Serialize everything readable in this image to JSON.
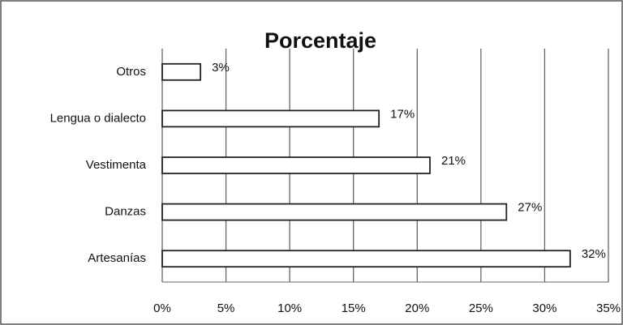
{
  "chart_data": {
    "type": "bar",
    "orientation": "horizontal",
    "title": "Porcentaje",
    "categories": [
      "Otros",
      "Lengua o dialecto",
      "Vestimenta",
      "Danzas",
      "Artesanías"
    ],
    "values": [
      3,
      17,
      21,
      27,
      32
    ],
    "value_labels": [
      "3%",
      "17%",
      "21%",
      "27%",
      "32%"
    ],
    "color": "#ffffff",
    "xlim": [
      0,
      35
    ],
    "xticks": [
      {
        "value": 0,
        "label": "0%"
      },
      {
        "value": 5,
        "label": "5%"
      },
      {
        "value": 10,
        "label": "10%"
      },
      {
        "value": 15,
        "label": "15%"
      },
      {
        "value": 20,
        "label": "20%"
      },
      {
        "value": 25,
        "label": "25%"
      },
      {
        "value": 30,
        "label": "30%"
      },
      {
        "value": 35,
        "label": "35%"
      }
    ],
    "grid": true
  }
}
